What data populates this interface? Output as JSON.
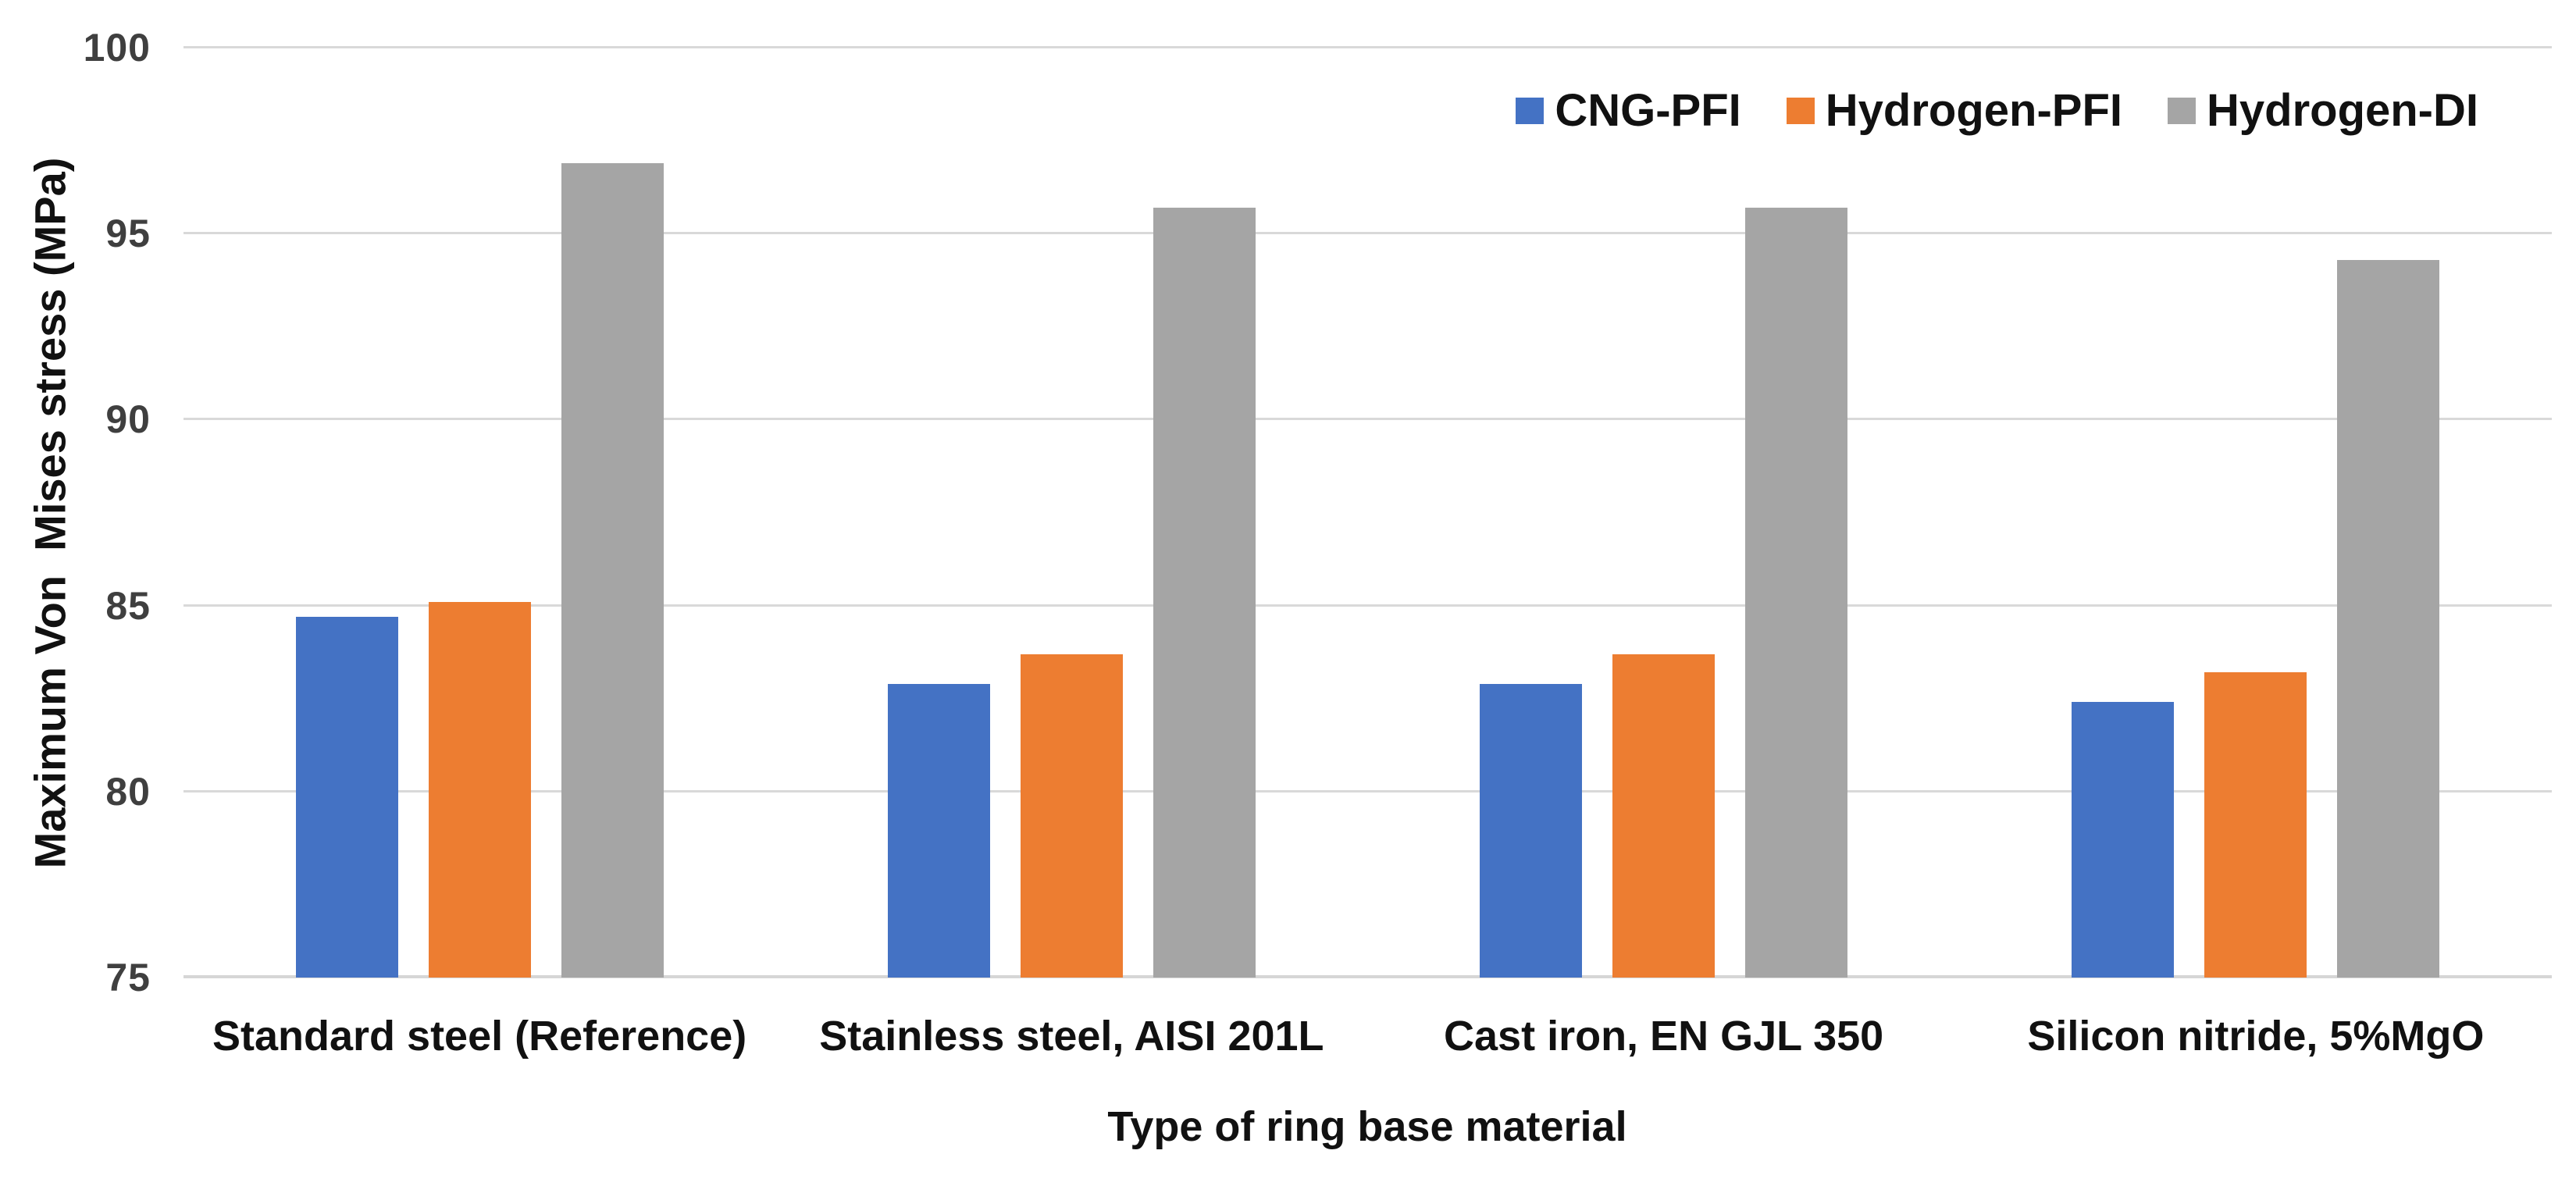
{
  "chart_data": {
    "type": "bar",
    "categories": [
      "Standard steel (Reference)",
      "Stainless steel, AISI 201L",
      "Cast iron, EN GJL 350",
      "Silicon nitride, 5%MgO"
    ],
    "series": [
      {
        "name": "CNG-PFI",
        "color": "#4472C4",
        "values": [
          84.7,
          82.9,
          82.9,
          82.4
        ]
      },
      {
        "name": "Hydrogen-PFI",
        "color": "#ED7D31",
        "values": [
          85.1,
          83.7,
          83.7,
          83.2
        ]
      },
      {
        "name": "Hydrogen-DI",
        "color": "#A5A5A5",
        "values": [
          96.9,
          95.7,
          95.7,
          94.3
        ]
      }
    ],
    "title": "",
    "xlabel": "Type of ring base material",
    "ylabel": "Maximum Von  Mises stress (MPa)",
    "ylim": [
      75,
      100
    ],
    "yticks": [
      75,
      80,
      85,
      90,
      95,
      100
    ],
    "grid": true,
    "legend_position": "top-right",
    "gridline_color": "#d9d9d9",
    "tick_label_color": "#3f3f3f",
    "text_color": "#111111",
    "background_color": "#ffffff"
  }
}
